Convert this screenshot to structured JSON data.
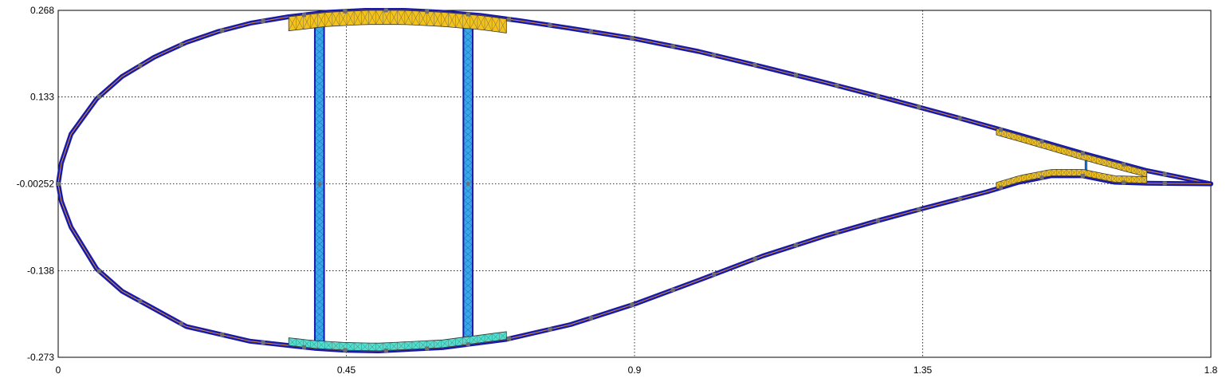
{
  "chart_data": {
    "type": "scatter",
    "title": "",
    "xlabel": "",
    "ylabel": "",
    "xlim": [
      0,
      1.8
    ],
    "ylim": [
      -0.273,
      0.268
    ],
    "x_ticks": [
      "0",
      "0.45",
      "0.9",
      "1.35",
      "1.8"
    ],
    "x_tick_values": [
      0,
      0.45,
      0.9,
      1.35,
      1.8
    ],
    "y_ticks": [
      "0.268",
      "0.133",
      "-0.00252",
      "-0.138",
      "-0.273"
    ],
    "y_tick_values": [
      0.268,
      0.133,
      -0.00252,
      -0.138,
      -0.273
    ],
    "grid": "dotted",
    "legend": "none",
    "colors": {
      "skin": "#1a1aa8",
      "skin_core": "#d9903a",
      "mesh_node": "#707070",
      "spar_cap_top": "#f3c21b",
      "spar_cap_bottom": "#4fe0d0",
      "shear_web": "#38a8e8",
      "trailing_edge_reinforcement": "#f3c21b"
    },
    "upper_surface": [
      [
        0.0,
        -0.00252
      ],
      [
        0.005,
        0.03
      ],
      [
        0.02,
        0.075
      ],
      [
        0.06,
        0.13
      ],
      [
        0.1,
        0.165
      ],
      [
        0.15,
        0.195
      ],
      [
        0.2,
        0.218
      ],
      [
        0.25,
        0.235
      ],
      [
        0.3,
        0.248
      ],
      [
        0.36,
        0.258
      ],
      [
        0.42,
        0.265
      ],
      [
        0.48,
        0.268
      ],
      [
        0.54,
        0.268
      ],
      [
        0.6,
        0.265
      ],
      [
        0.66,
        0.26
      ],
      [
        0.72,
        0.252
      ],
      [
        0.8,
        0.24
      ],
      [
        0.9,
        0.224
      ],
      [
        1.0,
        0.204
      ],
      [
        1.1,
        0.18
      ],
      [
        1.2,
        0.155
      ],
      [
        1.3,
        0.129
      ],
      [
        1.4,
        0.102
      ],
      [
        1.5,
        0.074
      ],
      [
        1.6,
        0.045
      ],
      [
        1.7,
        0.018
      ],
      [
        1.75,
        0.008
      ],
      [
        1.8,
        -0.00252
      ]
    ],
    "lower_surface": [
      [
        1.8,
        -0.00252
      ],
      [
        1.75,
        -0.002
      ],
      [
        1.7,
        -0.0015
      ],
      [
        1.65,
        0.0
      ],
      [
        1.6,
        0.01
      ],
      [
        1.55,
        0.01
      ],
      [
        1.5,
        0.0
      ],
      [
        1.45,
        -0.015
      ],
      [
        1.4,
        -0.028
      ],
      [
        1.35,
        -0.041
      ],
      [
        1.28,
        -0.06
      ],
      [
        1.2,
        -0.083
      ],
      [
        1.1,
        -0.115
      ],
      [
        1.0,
        -0.153
      ],
      [
        0.9,
        -0.19
      ],
      [
        0.8,
        -0.222
      ],
      [
        0.7,
        -0.245
      ],
      [
        0.6,
        -0.258
      ],
      [
        0.5,
        -0.263
      ],
      [
        0.45,
        -0.262
      ],
      [
        0.4,
        -0.259
      ],
      [
        0.3,
        -0.248
      ],
      [
        0.2,
        -0.225
      ],
      [
        0.1,
        -0.17
      ],
      [
        0.06,
        -0.135
      ],
      [
        0.02,
        -0.07
      ],
      [
        0.005,
        -0.03
      ],
      [
        0.0,
        -0.00252
      ]
    ],
    "spar_cap_top": {
      "x_start": 0.36,
      "x_end": 0.7,
      "thickness": 0.022
    },
    "spar_cap_bottom": {
      "x_start": 0.36,
      "x_end": 0.7,
      "thickness": 0.012
    },
    "shear_webs": [
      {
        "x": 0.408,
        "width": 0.012
      },
      {
        "x": 0.64,
        "width": 0.012
      }
    ],
    "trailing_edge_web": {
      "x": 1.605
    },
    "te_reinforcement_top": {
      "x_start": 1.465,
      "x_end": 1.7,
      "thickness": 0.01
    },
    "te_reinforcement_bottom": {
      "x_start": 1.465,
      "x_end": 1.7,
      "thickness": 0.01
    }
  }
}
